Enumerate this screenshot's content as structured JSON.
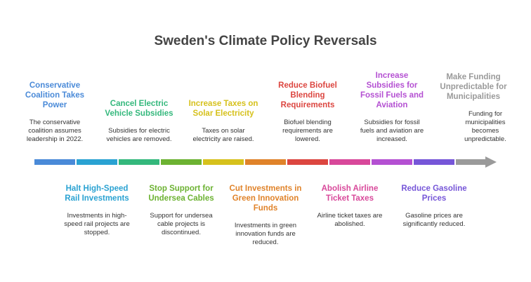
{
  "title": "Sweden's Climate Policy Reversals",
  "events": [
    {
      "title": "Conservative Coalition Takes Power",
      "description": "The conservative coalition assumes leadership in 2022.",
      "position": "top",
      "color": "#4a8ad8"
    },
    {
      "title": "Halt High-Speed Rail Investments",
      "description": "Investments in high-speed rail projects are stopped.",
      "position": "bottom",
      "color": "#2aa2d2"
    },
    {
      "title": "Cancel Electric Vehicle Subsidies",
      "description": "Subsidies for electric vehicles are removed.",
      "position": "top",
      "color": "#34b87c"
    },
    {
      "title": "Stop Support for Undersea Cables",
      "description": "Support for undersea cable projects is discontinued.",
      "position": "bottom",
      "color": "#6cb232"
    },
    {
      "title": "Increase Taxes on Solar Electricity",
      "description": "Taxes on solar electricity are raised.",
      "position": "top",
      "color": "#d6c11c"
    },
    {
      "title": "Cut Investments in Green Innovation Funds",
      "description": "Investments in green innovation funds are reduced.",
      "position": "bottom",
      "color": "#e0832a"
    },
    {
      "title": "Reduce Biofuel Blending Requirements",
      "description": "Biofuel blending requirements are lowered.",
      "position": "top",
      "color": "#dc4640"
    },
    {
      "title": "Abolish Airline Ticket Taxes",
      "description": "Airline ticket taxes are abolished.",
      "position": "bottom",
      "color": "#d8489a"
    },
    {
      "title": "Increase Subsidies for Fossil Fuels and Aviation",
      "description": "Subsidies for fossil fuels and aviation are increased.",
      "position": "top",
      "color": "#b450d2"
    },
    {
      "title": "Reduce Gasoline Prices",
      "description": "Gasoline prices are significantly reduced.",
      "position": "bottom",
      "color": "#7656d8"
    },
    {
      "title": "Make Funding Unpredictable for Municipalities",
      "description": "Funding for municipalities becomes unpredictable.",
      "position": "top",
      "color": "#9a9a9a"
    }
  ]
}
